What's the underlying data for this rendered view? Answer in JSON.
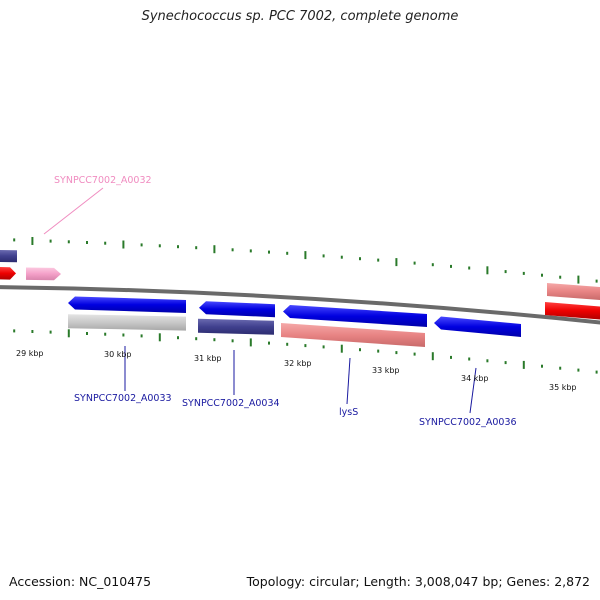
{
  "title": "Synechococcus sp. PCC 7002, complete genome",
  "footer": {
    "accession": "Accession: NC_010475",
    "info": "Topology: circular; Length: 3,008,047 bp; Genes: 2,872"
  },
  "colors": {
    "forward_gene": "#0000dd",
    "reverse_gene": "#0000dd",
    "navy_cds": "#3f3f8c",
    "salmon_cds": "#e98686",
    "red_cds": "#ee0000",
    "pink_cds": "#f4a0c8",
    "grey_cds": "#c8c8c8",
    "backbone": "#777777",
    "ticks": "#2a7a2a",
    "pink_label": "#f08cc0",
    "blue_label": "#1a1aa0"
  },
  "ruler": {
    "unit": "kbp",
    "ticks": [
      "29 kbp",
      "30 kbp",
      "31 kbp",
      "32 kbp",
      "33 kbp",
      "34 kbp",
      "35 kbp"
    ]
  },
  "genes": [
    {
      "label": "SYNPCC7002_A0032",
      "label_color": "pink"
    },
    {
      "label": "SYNPCC7002_A0033",
      "label_color": "blue"
    },
    {
      "label": "SYNPCC7002_A0034",
      "label_color": "blue"
    },
    {
      "label": "lysS",
      "label_color": "blue"
    },
    {
      "label": "SYNPCC7002_A0036",
      "label_color": "blue"
    }
  ]
}
